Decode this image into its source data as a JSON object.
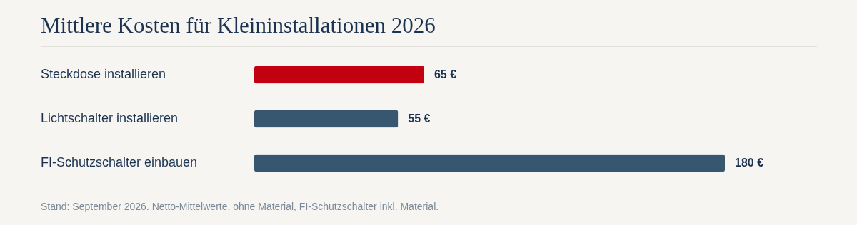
{
  "chart_data": {
    "type": "bar",
    "orientation": "horizontal",
    "title": "Mittlere Kosten für Kleininstallationen 2026",
    "categories": [
      "Steckdose installieren",
      "Lichtschalter installieren",
      "FI-Schutzschalter einbauen"
    ],
    "values": [
      65,
      55,
      180
    ],
    "colors": [
      "#c3000f",
      "#37566f",
      "#37566f"
    ],
    "value_labels": [
      "65 €",
      "55 €",
      "180 €"
    ],
    "annotations": [
      "Stand: September 2026. Netto-Mittelwerte, ohne Material, FI-Schutzschalter inkl. Material."
    ]
  }
}
